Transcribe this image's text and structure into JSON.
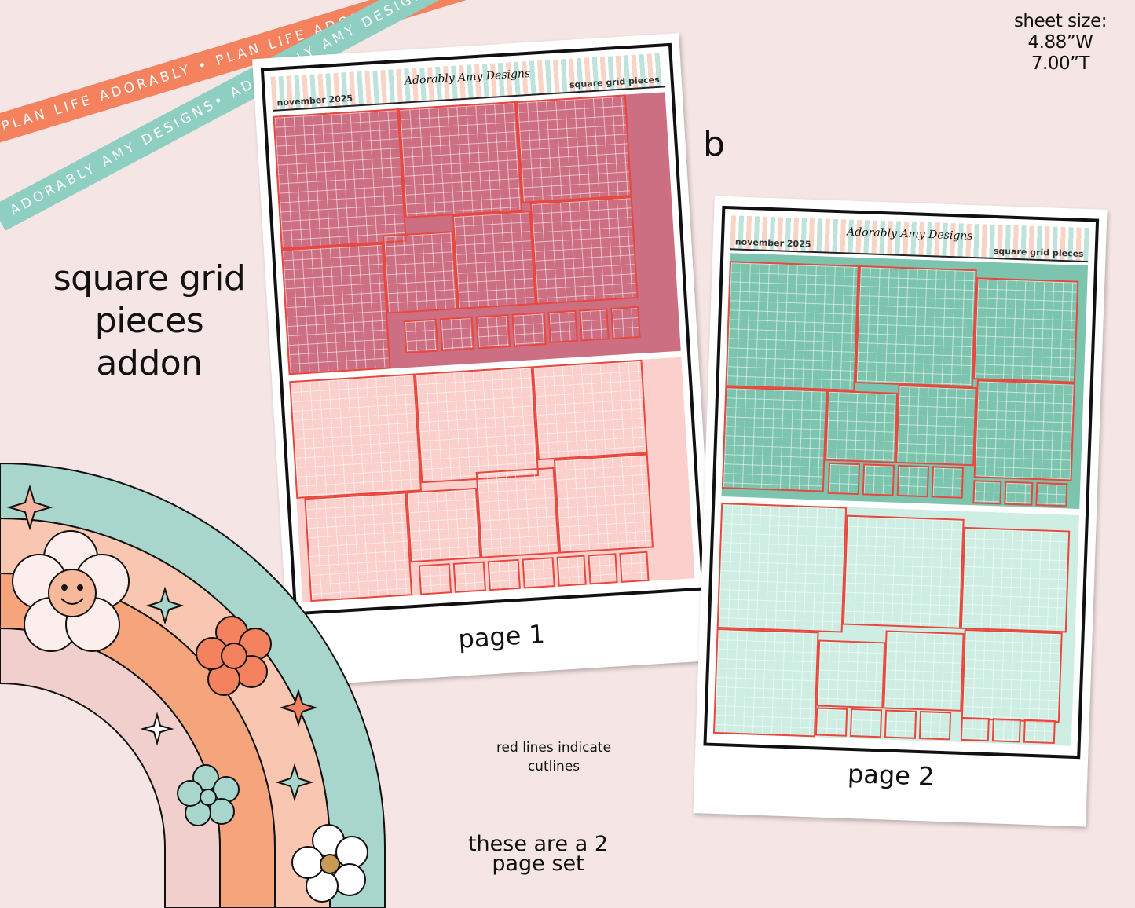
{
  "ribbons": {
    "orange_text": "PLAN LIFE ADORABLY • PLAN LIFE ADORABLY • PLAN LIFE ADORABLY •",
    "teal_text": "ADORABLY AMY DESIGNS• ADORABLY AMY DESIGNS• ADORABLY AMY DESIGNS•"
  },
  "sheet_size": {
    "label": "sheet size:",
    "width": "4.88”W",
    "height": "7.00”T"
  },
  "title": {
    "line1": "square grid",
    "line2": "pieces",
    "line3": "addon"
  },
  "variant_letter": "b",
  "sheets": [
    {
      "month": "november 2025",
      "brand": "Adorably Amy Designs",
      "label": "square grid pieces",
      "caption": "page 1",
      "top_color": "#cd6f83",
      "bottom_color": "#fbd0cc"
    },
    {
      "month": "november 2025",
      "brand": "Adorably Amy Designs",
      "label": "square grid pieces",
      "caption": "page 2",
      "top_color": "#7cc4ad",
      "bottom_color": "#cfeee3"
    }
  ],
  "cutline_note": {
    "line1": "red lines indicate",
    "line2": "cutlines"
  },
  "set_note": {
    "line1": "these are a 2",
    "line2": "page set"
  },
  "colors": {
    "background": "#f5e6e5",
    "cutline": "#e8473d",
    "ribbon_orange": "#f4825e",
    "ribbon_teal": "#8ecfc2"
  }
}
